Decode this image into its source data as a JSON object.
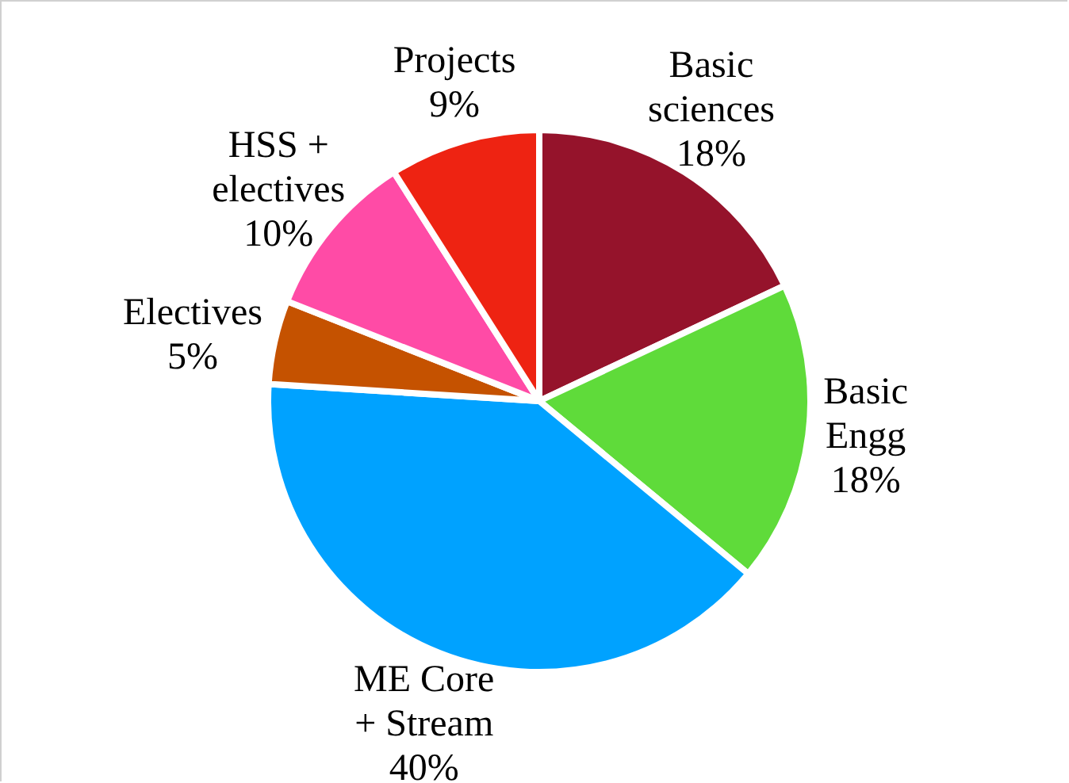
{
  "chart_data": {
    "type": "pie",
    "categories": [
      "Basic sciences",
      "Basic Engg",
      "ME Core + Stream",
      "Electives",
      "HSS + electives",
      "Projects"
    ],
    "values": [
      18,
      18,
      40,
      5,
      10,
      9
    ],
    "value_labels": [
      "18%",
      "18%",
      "40%",
      "5%",
      "10%",
      "9%"
    ],
    "colors": [
      "#95132b",
      "#5fdb3a",
      "#00a2ff",
      "#c55200",
      "#ff4ba6",
      "#ee2312"
    ],
    "legend": false
  }
}
